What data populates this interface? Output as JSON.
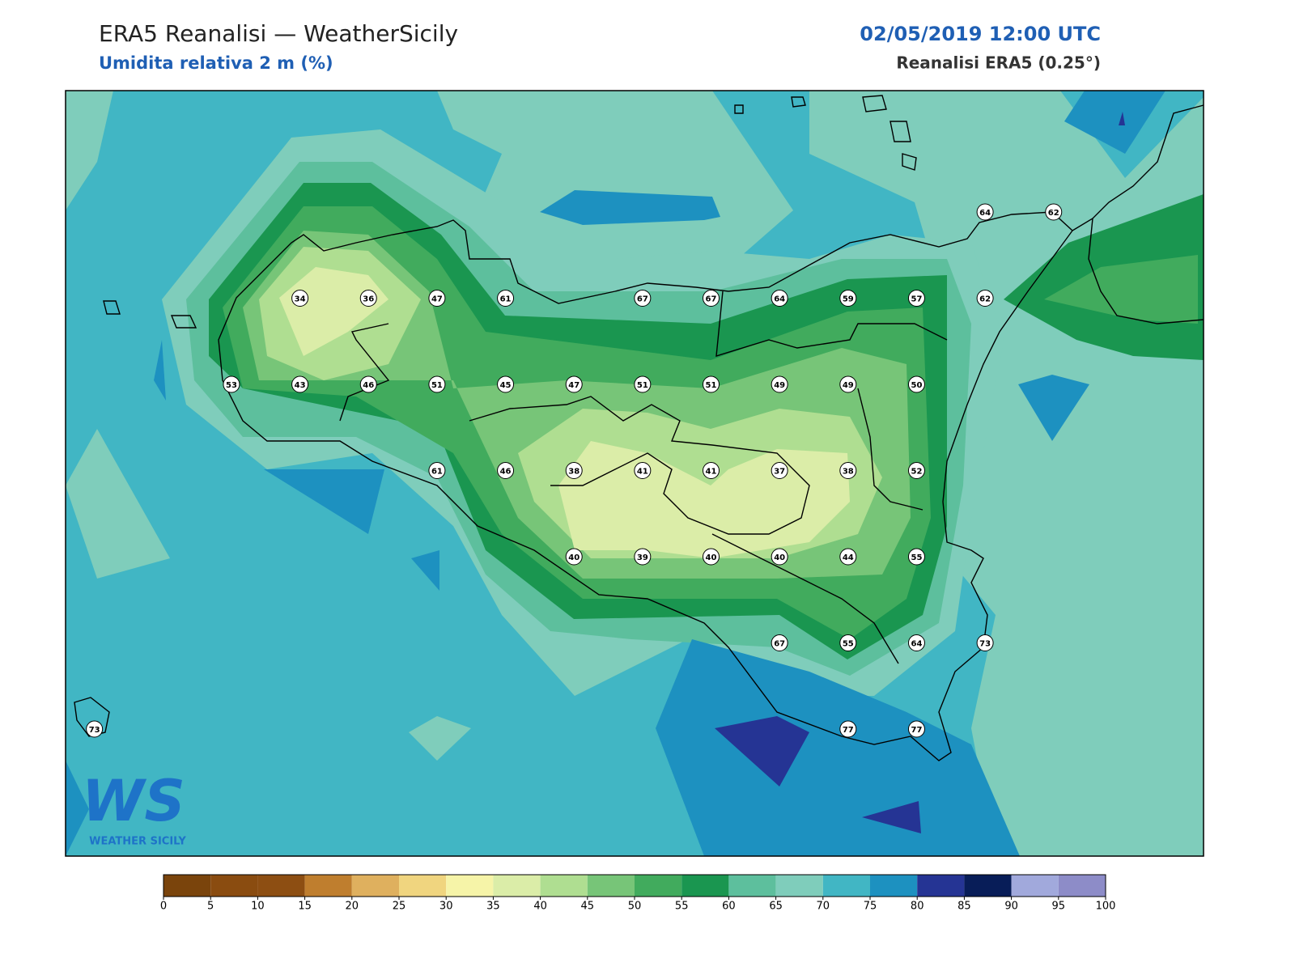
{
  "header": {
    "title": "ERA5 Reanalisi — WeatherSicily",
    "subtitle": "Umidita relativa 2 m (%)",
    "datetime": "02/05/2019 12:00 UTC",
    "source": "Reanalisi ERA5 (0.25°)"
  },
  "stations": [
    {
      "value": 64
    },
    {
      "value": 62
    },
    {
      "value": 34
    },
    {
      "value": 36
    },
    {
      "value": 47
    },
    {
      "value": 61
    },
    {
      "value": 67
    },
    {
      "value": 67
    },
    {
      "value": 64
    },
    {
      "value": 59
    },
    {
      "value": 57
    },
    {
      "value": 62
    },
    {
      "value": 53
    },
    {
      "value": 43
    },
    {
      "value": 46
    },
    {
      "value": 51
    },
    {
      "value": 45
    },
    {
      "value": 47
    },
    {
      "value": 51
    },
    {
      "value": 51
    },
    {
      "value": 49
    },
    {
      "value": 49
    },
    {
      "value": 50
    },
    {
      "value": 61
    },
    {
      "value": 46
    },
    {
      "value": 38
    },
    {
      "value": 41
    },
    {
      "value": 41
    },
    {
      "value": 37
    },
    {
      "value": 38
    },
    {
      "value": 52
    },
    {
      "value": 40
    },
    {
      "value": 39
    },
    {
      "value": 40
    },
    {
      "value": 40
    },
    {
      "value": 44
    },
    {
      "value": 55
    },
    {
      "value": 67
    },
    {
      "value": 55
    },
    {
      "value": 64
    },
    {
      "value": 73
    },
    {
      "value": 73
    },
    {
      "value": 77
    },
    {
      "value": 77
    }
  ],
  "colorbar": {
    "ticks": [
      0,
      5,
      10,
      15,
      20,
      25,
      30,
      35,
      40,
      45,
      50,
      55,
      60,
      65,
      70,
      75,
      80,
      85,
      90,
      95,
      100
    ],
    "colors": [
      "#7a440c",
      "#8a4c10",
      "#8d4e12",
      "#bf7e2e",
      "#dfb05e",
      "#f0d57f",
      "#f6f4a8",
      "#dbeda8",
      "#afde91",
      "#77c578",
      "#41ab5d",
      "#1a9650",
      "#5dbf9d",
      "#7fcdbb",
      "#41b6c4",
      "#1d91c0",
      "#253494",
      "#081d58",
      "#a1a9dc",
      "#8d8cc8"
    ]
  },
  "logo": {
    "mark": "WS",
    "text": "WEATHER SICILY"
  }
}
